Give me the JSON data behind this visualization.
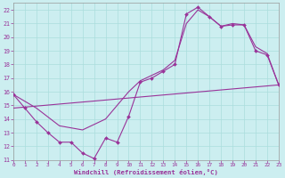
{
  "bg_color": "#cceef0",
  "grid_color": "#aadddd",
  "line_color": "#993399",
  "xlabel": "Windchill (Refroidissement éolien,°C)",
  "xlim": [
    0,
    23
  ],
  "ylim": [
    11,
    22.5
  ],
  "xticks": [
    0,
    1,
    2,
    3,
    4,
    5,
    6,
    7,
    8,
    9,
    10,
    11,
    12,
    13,
    14,
    15,
    16,
    17,
    18,
    19,
    20,
    21,
    22,
    23
  ],
  "yticks": [
    11,
    12,
    13,
    14,
    15,
    16,
    17,
    18,
    19,
    20,
    21,
    22
  ],
  "jagged_x": [
    0,
    1,
    2,
    3,
    4,
    5,
    6,
    7,
    8,
    9,
    10,
    11,
    12,
    13,
    14,
    15,
    16,
    17,
    18,
    19,
    20,
    21,
    22,
    23
  ],
  "jagged_y": [
    15.8,
    14.8,
    13.8,
    13.0,
    12.3,
    12.3,
    11.5,
    11.1,
    12.6,
    12.3,
    14.2,
    16.7,
    17.0,
    17.5,
    18.0,
    21.7,
    22.2,
    21.5,
    20.8,
    20.9,
    20.9,
    19.0,
    18.7,
    16.5
  ],
  "smooth_x": [
    0,
    2,
    4,
    6,
    8,
    10,
    11,
    12,
    13,
    14,
    15,
    16,
    17,
    18,
    19,
    20,
    21,
    22,
    23
  ],
  "smooth_y": [
    15.8,
    14.8,
    13.5,
    13.2,
    14.0,
    16.0,
    16.8,
    17.2,
    17.6,
    18.3,
    21.0,
    22.0,
    21.5,
    20.8,
    21.0,
    20.9,
    19.3,
    18.8,
    16.5
  ],
  "trend_x": [
    0,
    23
  ],
  "trend_y": [
    14.8,
    16.5
  ]
}
